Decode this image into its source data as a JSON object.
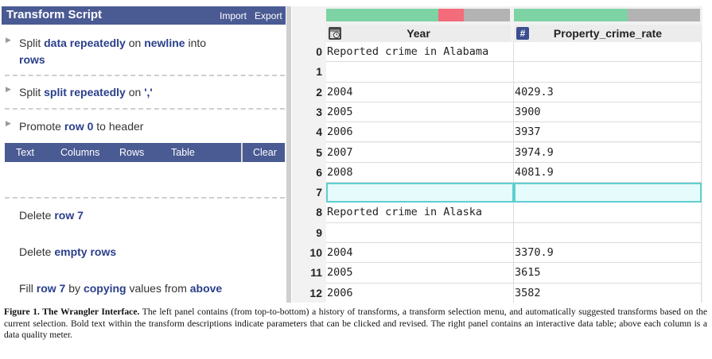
{
  "panel": {
    "title": "Transform Script",
    "import_label": "Import",
    "export_label": "Export"
  },
  "history": [
    {
      "parts": [
        "Split ",
        "data repeatedly",
        " on ",
        "newline",
        " into ",
        "rows"
      ]
    },
    {
      "parts": [
        "Split ",
        "split repeatedly",
        " on ",
        "','"
      ]
    },
    {
      "parts": [
        "Promote ",
        "row 0",
        " to header"
      ]
    }
  ],
  "menu": {
    "text": "Text",
    "columns": "Columns",
    "rows": "Rows",
    "table": "Table",
    "clear": "Clear"
  },
  "suggestions": [
    {
      "parts": [
        "Delete ",
        "row 7"
      ]
    },
    {
      "parts": [
        "Delete ",
        "empty rows"
      ]
    },
    {
      "parts": [
        "Fill ",
        "row 7",
        " by ",
        "copying",
        " values from ",
        "above"
      ]
    }
  ],
  "table": {
    "columns": [
      {
        "name": "Year",
        "type_icon": "date-type-icon",
        "quality": {
          "valid": 0.61,
          "invalid": 0.14,
          "missing": 0.25
        }
      },
      {
        "name": "Property_crime_rate",
        "type_icon": "number-type-icon",
        "type_glyph": "#",
        "quality": {
          "valid": 0.61,
          "invalid": 0.0,
          "missing": 0.39
        }
      }
    ],
    "rows": [
      {
        "num": "0",
        "cells": [
          "Reported crime in Alabama",
          ""
        ]
      },
      {
        "num": "1",
        "cells": [
          "",
          ""
        ]
      },
      {
        "num": "2",
        "cells": [
          "2004",
          "4029.3"
        ]
      },
      {
        "num": "3",
        "cells": [
          "2005",
          "3900"
        ]
      },
      {
        "num": "4",
        "cells": [
          "2006",
          "3937"
        ]
      },
      {
        "num": "5",
        "cells": [
          "2007",
          "3974.9"
        ]
      },
      {
        "num": "6",
        "cells": [
          "2008",
          "4081.9"
        ]
      },
      {
        "num": "7",
        "cells": [
          "",
          ""
        ],
        "selected": true
      },
      {
        "num": "8",
        "cells": [
          "Reported crime in Alaska",
          ""
        ]
      },
      {
        "num": "9",
        "cells": [
          "",
          ""
        ]
      },
      {
        "num": "10",
        "cells": [
          "2004",
          "3370.9"
        ]
      },
      {
        "num": "11",
        "cells": [
          "2005",
          "3615"
        ]
      },
      {
        "num": "12",
        "cells": [
          "2006",
          "3582"
        ]
      }
    ],
    "colors": {
      "valid": "#7dd3a4",
      "invalid": "#f46b7b",
      "missing": "#b3b3b3",
      "selection": "#5fcfd0"
    }
  },
  "caption": {
    "label": "Figure 1. The Wrangler Interface.",
    "text": " The left panel contains (from top-to-bottom) a history of transforms, a transform selection menu, and automatically suggested transforms based on the current selection. Bold text within the transform descriptions indicate parameters that can be clicked and revised. The right panel contains an interactive data table; above each column is a data quality meter."
  }
}
